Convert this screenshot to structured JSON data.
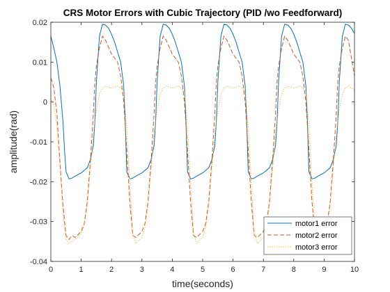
{
  "chart_data": {
    "type": "line",
    "title": "CRS Motor Errors with Cubic Trajectory (PID /wo Feedforward)",
    "xlabel": "time(seconds)",
    "ylabel": "amplitude(rad)",
    "xlim": [
      0,
      10
    ],
    "ylim": [
      -0.04,
      0.02
    ],
    "xticks": [
      0,
      1,
      2,
      3,
      4,
      5,
      6,
      7,
      8,
      9,
      10
    ],
    "yticks": [
      -0.04,
      -0.03,
      -0.02,
      -0.01,
      0,
      0.01,
      0.02
    ],
    "xtick_labels": [
      "0",
      "1",
      "2",
      "3",
      "4",
      "5",
      "6",
      "7",
      "8",
      "9",
      "10"
    ],
    "ytick_labels": [
      "-0.04",
      "-0.03",
      "-0.02",
      "-0.01",
      "0",
      "0.01",
      "0.02"
    ],
    "grid": false,
    "legend_position": "bottom-right",
    "series": [
      {
        "name": "motor1 error",
        "color": "#0072BD",
        "style": "solid",
        "x": [
          0,
          0.05,
          0.1,
          0.2,
          0.3,
          0.4,
          0.45,
          0.5,
          0.6,
          0.7,
          0.8,
          1.0,
          1.2,
          1.3,
          1.4,
          1.45,
          1.5,
          1.6,
          1.7,
          1.8,
          1.9,
          2.0,
          2.1,
          2.2,
          2.3,
          2.4,
          2.45,
          2.5,
          2.6,
          2.7,
          2.8,
          3.0,
          3.2,
          3.3,
          3.4,
          3.45,
          3.5,
          3.6,
          3.7,
          3.8,
          3.9,
          4.0,
          4.1,
          4.2,
          4.3,
          4.4,
          4.45,
          4.5,
          4.6,
          4.7,
          4.8,
          5.0,
          5.2,
          5.3,
          5.4,
          5.45,
          5.5,
          5.6,
          5.7,
          5.8,
          5.9,
          6.0,
          6.1,
          6.2,
          6.3,
          6.4,
          6.45,
          6.5,
          6.6,
          6.7,
          6.8,
          7.0,
          7.2,
          7.3,
          7.4,
          7.45,
          7.5,
          7.6,
          7.7,
          7.8,
          7.9,
          8.0,
          8.1,
          8.2,
          8.3,
          8.4,
          8.45,
          8.5,
          8.6,
          8.7,
          8.8,
          9.0,
          9.2,
          9.3,
          9.4,
          9.45,
          9.5,
          9.6,
          9.7,
          9.8,
          9.9,
          10.0
        ],
        "y": [
          0.0165,
          0.015,
          0.0135,
          0.01,
          0.004,
          -0.005,
          -0.012,
          -0.0175,
          -0.0193,
          -0.0191,
          -0.0186,
          -0.0178,
          -0.0165,
          -0.0145,
          -0.011,
          -0.005,
          0.005,
          0.0165,
          0.0195,
          0.0193,
          0.0185,
          0.017,
          0.015,
          0.0125,
          0.01,
          0.004,
          -0.005,
          -0.0175,
          -0.0193,
          -0.0191,
          -0.0186,
          -0.0178,
          -0.0165,
          -0.0145,
          -0.011,
          -0.005,
          0.005,
          0.0165,
          0.0195,
          0.0193,
          0.0185,
          0.017,
          0.015,
          0.0125,
          0.01,
          0.004,
          -0.005,
          -0.0175,
          -0.0193,
          -0.0191,
          -0.0186,
          -0.0178,
          -0.0165,
          -0.0145,
          -0.011,
          -0.005,
          0.005,
          0.0165,
          0.0195,
          0.0193,
          0.0185,
          0.017,
          0.015,
          0.0125,
          0.01,
          0.004,
          -0.005,
          -0.0175,
          -0.0193,
          -0.0191,
          -0.0186,
          -0.0178,
          -0.0165,
          -0.0145,
          -0.011,
          -0.005,
          0.005,
          0.0165,
          0.0195,
          0.0193,
          0.0185,
          0.017,
          0.015,
          0.0125,
          0.01,
          0.004,
          -0.005,
          -0.0175,
          -0.0193,
          -0.0191,
          -0.0186,
          -0.0178,
          -0.0165,
          -0.0145,
          -0.011,
          -0.005,
          0.005,
          0.0165,
          0.0195,
          0.0193,
          0.0185,
          0.0172
        ]
      },
      {
        "name": "motor2 error",
        "color": "#D95319",
        "style": "dashed",
        "x": [
          0,
          0.05,
          0.1,
          0.2,
          0.3,
          0.4,
          0.5,
          0.6,
          0.7,
          0.8,
          1.0,
          1.1,
          1.2,
          1.3,
          1.4,
          1.45,
          1.5,
          1.6,
          1.7,
          1.8,
          2.0,
          2.2,
          2.3,
          2.4,
          2.5,
          2.6,
          2.7,
          2.8,
          3.0,
          3.1,
          3.2,
          3.3,
          3.4,
          3.45,
          3.5,
          3.6,
          3.7,
          3.8,
          4.0,
          4.2,
          4.3,
          4.4,
          4.5,
          4.6,
          4.7,
          4.8,
          5.0,
          5.1,
          5.2,
          5.3,
          5.4,
          5.45,
          5.5,
          5.6,
          5.7,
          5.8,
          6.0,
          6.2,
          6.3,
          6.4,
          6.5,
          6.6,
          6.7,
          6.8,
          7.0,
          7.1,
          7.2,
          7.3,
          7.4,
          7.45,
          7.5,
          7.6,
          7.7,
          7.8,
          8.0,
          8.2,
          8.3,
          8.4,
          8.5,
          8.6,
          8.7,
          8.8,
          9.0,
          9.1,
          9.2,
          9.3,
          9.4,
          9.45,
          9.5,
          9.6,
          9.7,
          9.8,
          10.0
        ],
        "y": [
          0.006,
          0.005,
          0.0035,
          -0.003,
          -0.015,
          -0.026,
          -0.0335,
          -0.0345,
          -0.0335,
          -0.034,
          -0.0325,
          -0.0305,
          -0.025,
          -0.015,
          -0.003,
          0.005,
          0.009,
          0.0135,
          0.0165,
          0.0155,
          0.012,
          0.01,
          0.0065,
          0.0,
          -0.012,
          -0.025,
          -0.0335,
          -0.034,
          -0.0325,
          -0.0305,
          -0.025,
          -0.015,
          -0.003,
          0.005,
          0.009,
          0.0135,
          0.0165,
          0.0155,
          0.012,
          0.01,
          0.0065,
          0.0,
          -0.012,
          -0.025,
          -0.0335,
          -0.034,
          -0.0325,
          -0.0305,
          -0.025,
          -0.015,
          -0.003,
          0.005,
          0.009,
          0.0135,
          0.0165,
          0.0155,
          0.012,
          0.01,
          0.0065,
          0.0,
          -0.012,
          -0.025,
          -0.0335,
          -0.034,
          -0.0325,
          -0.0305,
          -0.025,
          -0.015,
          -0.003,
          0.005,
          0.009,
          0.0135,
          0.0165,
          0.0155,
          0.012,
          0.01,
          0.0065,
          0.0,
          -0.012,
          -0.025,
          -0.0335,
          -0.034,
          -0.0325,
          -0.0305,
          -0.025,
          -0.015,
          -0.003,
          0.005,
          0.009,
          0.0135,
          0.0165,
          0.0155,
          0.0065
        ]
      },
      {
        "name": "motor3 error",
        "color": "#EDB120",
        "style": "dotted",
        "x": [
          0,
          0.05,
          0.1,
          0.2,
          0.3,
          0.4,
          0.5,
          0.6,
          0.7,
          0.8,
          1.0,
          1.1,
          1.2,
          1.3,
          1.4,
          1.5,
          1.6,
          1.7,
          1.8,
          2.0,
          2.2,
          2.3,
          2.4,
          2.5,
          2.6,
          2.7,
          2.8,
          3.0,
          3.1,
          3.2,
          3.3,
          3.4,
          3.5,
          3.6,
          3.7,
          3.8,
          4.0,
          4.2,
          4.3,
          4.4,
          4.5,
          4.6,
          4.7,
          4.8,
          5.0,
          5.1,
          5.2,
          5.3,
          5.4,
          5.5,
          5.6,
          5.7,
          5.8,
          6.0,
          6.2,
          6.3,
          6.4,
          6.5,
          6.6,
          6.7,
          6.8,
          7.0,
          7.1,
          7.2,
          7.3,
          7.4,
          7.5,
          7.6,
          7.7,
          7.8,
          8.0,
          8.2,
          8.3,
          8.4,
          8.5,
          8.6,
          8.7,
          8.8,
          9.0,
          9.1,
          9.2,
          9.3,
          9.4,
          9.5,
          9.6,
          9.7,
          9.8,
          10.0
        ],
        "y": [
          0.001,
          0.0,
          -0.001,
          -0.006,
          -0.016,
          -0.028,
          -0.0345,
          -0.0355,
          -0.035,
          -0.0345,
          -0.033,
          -0.031,
          -0.026,
          -0.017,
          -0.008,
          -0.002,
          0.002,
          0.0035,
          0.004,
          0.0035,
          0.004,
          0.0035,
          0.0025,
          -0.006,
          -0.02,
          -0.033,
          -0.0355,
          -0.034,
          -0.0315,
          -0.026,
          -0.017,
          -0.008,
          -0.002,
          0.002,
          0.0035,
          0.004,
          0.0035,
          0.004,
          0.0035,
          0.0025,
          -0.006,
          -0.02,
          -0.033,
          -0.0355,
          -0.034,
          -0.0315,
          -0.026,
          -0.017,
          -0.008,
          -0.002,
          0.002,
          0.0035,
          0.004,
          0.0035,
          0.004,
          0.0035,
          0.0025,
          -0.006,
          -0.02,
          -0.033,
          -0.0355,
          -0.034,
          -0.0315,
          -0.026,
          -0.017,
          -0.008,
          -0.002,
          0.002,
          0.0035,
          0.004,
          0.0035,
          0.004,
          0.0035,
          0.0025,
          -0.006,
          -0.02,
          -0.033,
          -0.0355,
          -0.034,
          -0.0315,
          -0.026,
          -0.017,
          -0.008,
          -0.002,
          0.002,
          0.0035,
          0.004,
          0.003
        ]
      }
    ]
  }
}
